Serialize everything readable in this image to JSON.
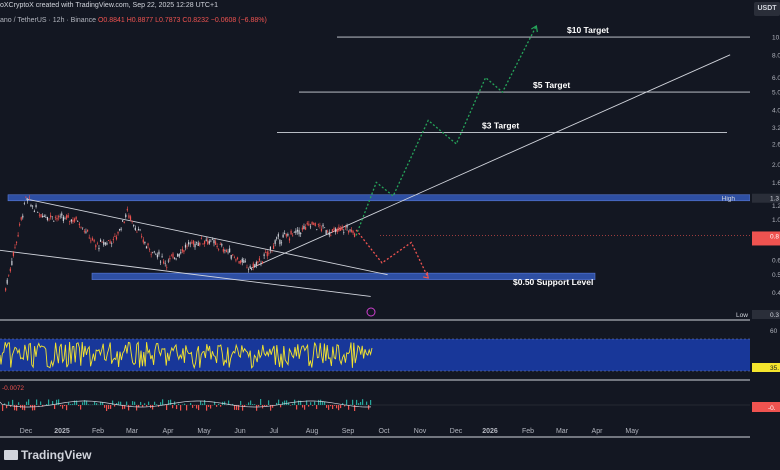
{
  "header": {
    "published": "oXCryptoX created with TradingView.com, Sep 22, 2025 12:28 UTC+1",
    "symbol": "ano / TetherUS · 12h · Binance",
    "ohlc": "O0.8841 H0.8877 L0.7873 C0.8232 −0.0608 (−6.88%)",
    "currency_button": "USDT"
  },
  "footer": {
    "brand": "TradingView"
  },
  "colors": {
    "background": "#131722",
    "candles_up": "#d1d4dc",
    "zone": "#2e4fa3",
    "bull_path": "#26a65b",
    "bear_path": "#ef5350",
    "rsi_line": "#f5e52d",
    "rsi_band": "#1a3ba6",
    "macd_hist_up": "#26a69a",
    "macd_hist_down": "#ef5350"
  },
  "chart_data": {
    "type": "line",
    "subtype": "candlestick-price-chart",
    "y_scale": "log",
    "ylim": [
      0.35,
      11.5
    ],
    "y_tick_labels": [
      "0.4",
      "0.5",
      "0.6",
      "0.8",
      "1.0",
      "1.2",
      "1.6",
      "2.0",
      "2.6",
      "3.2",
      "4.0",
      "5.0",
      "6.0",
      "8.0",
      "10.0"
    ],
    "x_tick_labels": [
      "Dec",
      "2025",
      "Feb",
      "Mar",
      "Apr",
      "May",
      "Jun",
      "Jul",
      "Aug",
      "Sep",
      "Oct",
      "Nov",
      "Dec",
      "2026",
      "Feb",
      "Mar",
      "Apr",
      "May"
    ],
    "price_series": {
      "name": "ADA/USDT",
      "x": [
        "2024-11-15",
        "2024-12-03",
        "2024-12-15",
        "2025-01-01",
        "2025-01-18",
        "2025-02-03",
        "2025-02-20",
        "2025-03-03",
        "2025-03-20",
        "2025-04-07",
        "2025-04-25",
        "2025-05-12",
        "2025-05-30",
        "2025-06-20",
        "2025-07-01",
        "2025-07-15",
        "2025-08-01",
        "2025-08-14",
        "2025-09-01",
        "2025-09-14",
        "2025-09-22"
      ],
      "y": [
        0.42,
        1.3,
        1.08,
        1.02,
        1.0,
        0.72,
        0.78,
        1.1,
        0.72,
        0.58,
        0.72,
        0.78,
        0.68,
        0.54,
        0.6,
        0.78,
        0.85,
        0.95,
        0.85,
        0.9,
        0.82
      ]
    },
    "bull_projection": {
      "x": [
        "2025-09-22",
        "2025-10-10",
        "2025-10-25",
        "2025-11-25",
        "2025-12-20",
        "2026-01-15",
        "2026-01-30",
        "2026-03-01"
      ],
      "y": [
        0.82,
        1.6,
        1.35,
        3.5,
        2.6,
        6.0,
        5.0,
        11.5
      ]
    },
    "bear_projection": {
      "x": [
        "2025-09-22",
        "2025-10-15",
        "2025-11-10",
        "2025-11-25"
      ],
      "y": [
        0.88,
        0.58,
        0.75,
        0.48
      ]
    },
    "trendlines": [
      {
        "x": [
          "2024-12-03",
          "2025-10-20"
        ],
        "y": [
          1.3,
          0.5
        ]
      },
      {
        "x": [
          "2024-11-10",
          "2025-10-05"
        ],
        "y": [
          0.68,
          0.38
        ]
      },
      {
        "x": [
          "2025-06-20",
          "2026-08-20"
        ],
        "y": [
          0.54,
          8.0
        ]
      }
    ],
    "zones": [
      {
        "name": "High",
        "low": 1.27,
        "high": 1.37,
        "value_label": "1.3"
      },
      {
        "name": "Support",
        "low": 0.47,
        "high": 0.51
      }
    ],
    "targets": [
      {
        "label": "$10 Target",
        "value": 10.0
      },
      {
        "label": "$5 Target",
        "value": 5.0
      },
      {
        "label": "$3 Target",
        "value": 3.0
      }
    ],
    "annotations": [
      "$0.50 Support Level",
      "High",
      "Low"
    ],
    "price_labels": {
      "high": "1.3",
      "low": "0.3",
      "current": "0.8"
    },
    "rsi": {
      "levels": [
        70,
        30
      ],
      "visible_tick_labels": [
        "60",
        "35."
      ]
    },
    "macd": {
      "value_label": "-0.0072",
      "current_tag": "-0."
    }
  }
}
